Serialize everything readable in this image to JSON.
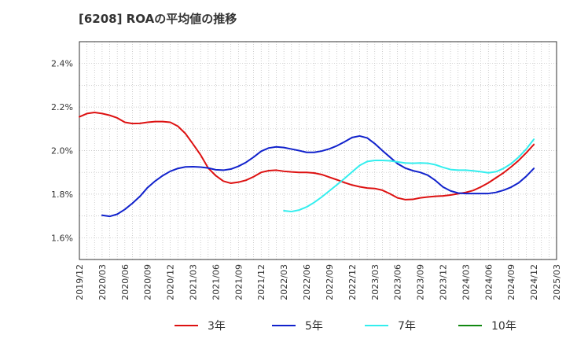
{
  "chart_data": {
    "type": "line",
    "title": "[6208]  ROAの平均値の推移",
    "xlabel": "",
    "ylabel": "",
    "x": [
      "2019/12",
      "2020/03",
      "2020/06",
      "2020/09",
      "2020/12",
      "2021/03",
      "2021/06",
      "2021/09",
      "2021/12",
      "2022/03",
      "2022/06",
      "2022/09",
      "2022/12",
      "2023/03",
      "2023/06",
      "2023/09",
      "2023/12",
      "2024/03",
      "2024/06",
      "2024/09",
      "2024/12",
      "2025/03"
    ],
    "y_ticks": [
      "1.6%",
      "1.8%",
      "2.0%",
      "2.2%",
      "2.4%"
    ],
    "ylim": [
      1.5,
      2.5
    ],
    "grid": true,
    "legend_position": "bottom",
    "colors": {
      "3年": "#dd1111",
      "5年": "#1122cc",
      "7年": "#33eeee",
      "10年": "#118811"
    },
    "series": [
      {
        "name": "3年",
        "points": [
          [
            "2019/12",
            2.155
          ],
          [
            "2020/01",
            2.17
          ],
          [
            "2020/02",
            2.175
          ],
          [
            "2020/03",
            2.17
          ],
          [
            "2020/04",
            2.162
          ],
          [
            "2020/05",
            2.15
          ],
          [
            "2020/06",
            2.13
          ],
          [
            "2020/07",
            2.124
          ],
          [
            "2020/08",
            2.125
          ],
          [
            "2020/09",
            2.13
          ],
          [
            "2020/10",
            2.133
          ],
          [
            "2020/11",
            2.133
          ],
          [
            "2020/12",
            2.13
          ],
          [
            "2021/01",
            2.112
          ],
          [
            "2021/02",
            2.078
          ],
          [
            "2021/03",
            2.03
          ],
          [
            "2021/04",
            1.98
          ],
          [
            "2021/05",
            1.92
          ],
          [
            "2021/06",
            1.885
          ],
          [
            "2021/07",
            1.86
          ],
          [
            "2021/08",
            1.85
          ],
          [
            "2021/09",
            1.855
          ],
          [
            "2021/10",
            1.864
          ],
          [
            "2021/11",
            1.88
          ],
          [
            "2021/12",
            1.9
          ],
          [
            "2022/01",
            1.908
          ],
          [
            "2022/02",
            1.91
          ],
          [
            "2022/03",
            1.905
          ],
          [
            "2022/04",
            1.902
          ],
          [
            "2022/05",
            1.9
          ],
          [
            "2022/06",
            1.9
          ],
          [
            "2022/07",
            1.897
          ],
          [
            "2022/08",
            1.89
          ],
          [
            "2022/09",
            1.878
          ],
          [
            "2022/10",
            1.866
          ],
          [
            "2022/11",
            1.853
          ],
          [
            "2022/12",
            1.842
          ],
          [
            "2023/01",
            1.834
          ],
          [
            "2023/02",
            1.828
          ],
          [
            "2023/03",
            1.826
          ],
          [
            "2023/04",
            1.818
          ],
          [
            "2023/05",
            1.802
          ],
          [
            "2023/06",
            1.783
          ],
          [
            "2023/07",
            1.775
          ],
          [
            "2023/08",
            1.776
          ],
          [
            "2023/09",
            1.783
          ],
          [
            "2023/10",
            1.787
          ],
          [
            "2023/11",
            1.79
          ],
          [
            "2023/12",
            1.792
          ],
          [
            "2024/01",
            1.796
          ],
          [
            "2024/02",
            1.802
          ],
          [
            "2024/03",
            1.808
          ],
          [
            "2024/04",
            1.817
          ],
          [
            "2024/05",
            1.833
          ],
          [
            "2024/06",
            1.852
          ],
          [
            "2024/07",
            1.875
          ],
          [
            "2024/08",
            1.898
          ],
          [
            "2024/09",
            1.925
          ],
          [
            "2024/10",
            1.955
          ],
          [
            "2024/11",
            1.99
          ],
          [
            "2024/12",
            2.028
          ]
        ]
      },
      {
        "name": "5年",
        "points": [
          [
            "2020/03",
            1.703
          ],
          [
            "2020/04",
            1.698
          ],
          [
            "2020/05",
            1.708
          ],
          [
            "2020/06",
            1.73
          ],
          [
            "2020/07",
            1.758
          ],
          [
            "2020/08",
            1.79
          ],
          [
            "2020/09",
            1.83
          ],
          [
            "2020/10",
            1.86
          ],
          [
            "2020/11",
            1.885
          ],
          [
            "2020/12",
            1.905
          ],
          [
            "2021/01",
            1.918
          ],
          [
            "2021/02",
            1.925
          ],
          [
            "2021/03",
            1.926
          ],
          [
            "2021/04",
            1.924
          ],
          [
            "2021/05",
            1.92
          ],
          [
            "2021/06",
            1.912
          ],
          [
            "2021/07",
            1.91
          ],
          [
            "2021/08",
            1.915
          ],
          [
            "2021/09",
            1.928
          ],
          [
            "2021/10",
            1.946
          ],
          [
            "2021/11",
            1.97
          ],
          [
            "2021/12",
            1.997
          ],
          [
            "2022/01",
            2.012
          ],
          [
            "2022/02",
            2.017
          ],
          [
            "2022/03",
            2.014
          ],
          [
            "2022/04",
            2.007
          ],
          [
            "2022/05",
            2.0
          ],
          [
            "2022/06",
            1.992
          ],
          [
            "2022/07",
            1.992
          ],
          [
            "2022/08",
            1.998
          ],
          [
            "2022/09",
            2.008
          ],
          [
            "2022/10",
            2.022
          ],
          [
            "2022/11",
            2.04
          ],
          [
            "2022/12",
            2.06
          ],
          [
            "2023/01",
            2.067
          ],
          [
            "2023/02",
            2.058
          ],
          [
            "2023/03",
            2.032
          ],
          [
            "2023/04",
            2.0
          ],
          [
            "2023/05",
            1.97
          ],
          [
            "2023/06",
            1.94
          ],
          [
            "2023/07",
            1.92
          ],
          [
            "2023/08",
            1.908
          ],
          [
            "2023/09",
            1.9
          ],
          [
            "2023/10",
            1.887
          ],
          [
            "2023/11",
            1.863
          ],
          [
            "2023/12",
            1.833
          ],
          [
            "2024/01",
            1.815
          ],
          [
            "2024/02",
            1.805
          ],
          [
            "2024/03",
            1.803
          ],
          [
            "2024/04",
            1.803
          ],
          [
            "2024/05",
            1.803
          ],
          [
            "2024/06",
            1.803
          ],
          [
            "2024/07",
            1.808
          ],
          [
            "2024/08",
            1.818
          ],
          [
            "2024/09",
            1.832
          ],
          [
            "2024/10",
            1.852
          ],
          [
            "2024/11",
            1.882
          ],
          [
            "2024/12",
            1.918
          ]
        ]
      },
      {
        "name": "7年",
        "points": [
          [
            "2022/03",
            1.724
          ],
          [
            "2022/04",
            1.72
          ],
          [
            "2022/05",
            1.727
          ],
          [
            "2022/06",
            1.741
          ],
          [
            "2022/07",
            1.762
          ],
          [
            "2022/08",
            1.787
          ],
          [
            "2022/09",
            1.815
          ],
          [
            "2022/10",
            1.843
          ],
          [
            "2022/11",
            1.872
          ],
          [
            "2022/12",
            1.902
          ],
          [
            "2023/01",
            1.932
          ],
          [
            "2023/02",
            1.95
          ],
          [
            "2023/03",
            1.955
          ],
          [
            "2023/04",
            1.955
          ],
          [
            "2023/05",
            1.953
          ],
          [
            "2023/06",
            1.948
          ],
          [
            "2023/07",
            1.943
          ],
          [
            "2023/08",
            1.942
          ],
          [
            "2023/09",
            1.943
          ],
          [
            "2023/10",
            1.942
          ],
          [
            "2023/11",
            1.935
          ],
          [
            "2023/12",
            1.923
          ],
          [
            "2024/01",
            1.913
          ],
          [
            "2024/02",
            1.91
          ],
          [
            "2024/03",
            1.91
          ],
          [
            "2024/04",
            1.907
          ],
          [
            "2024/05",
            1.903
          ],
          [
            "2024/06",
            1.898
          ],
          [
            "2024/07",
            1.903
          ],
          [
            "2024/08",
            1.918
          ],
          [
            "2024/09",
            1.94
          ],
          [
            "2024/10",
            1.97
          ],
          [
            "2024/11",
            2.007
          ],
          [
            "2024/12",
            2.052
          ]
        ]
      },
      {
        "name": "10年",
        "points": []
      }
    ]
  }
}
